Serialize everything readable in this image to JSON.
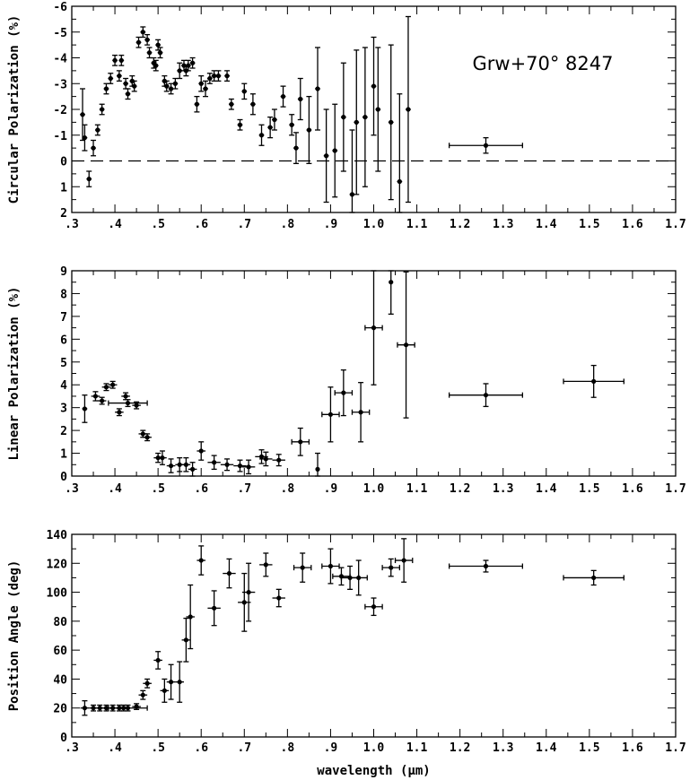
{
  "chart_data": [
    {
      "type": "scatter",
      "ylabel": "Circular Polarization (%)",
      "xlabel": "",
      "xlim": [
        0.3,
        1.7
      ],
      "ylim": [
        -6,
        2
      ],
      "y_inverted": true,
      "xticklabels": [
        ".3",
        ".4",
        ".5",
        ".6",
        ".7",
        ".8",
        ".9",
        "1.0",
        "1.1",
        "1.2",
        "1.3",
        "1.4",
        "1.5",
        "1.6",
        "1.7"
      ],
      "yticks": [
        -6,
        -5,
        -4,
        -3,
        -2,
        -1,
        0,
        1,
        2
      ],
      "yticklabels": [
        "-6",
        "-5",
        "-4",
        "-3",
        "-2",
        "-1",
        "0",
        "1",
        "2"
      ],
      "reference_line": 0,
      "annotation": "Grw+70° 8247",
      "grid": false,
      "points": [
        {
          "x": 0.325,
          "y": -1.8,
          "ye": 1.0
        },
        {
          "x": 0.33,
          "y": -0.9,
          "ye": 0.5
        },
        {
          "x": 0.34,
          "y": 0.7,
          "ye": 0.3
        },
        {
          "x": 0.35,
          "y": -0.5,
          "ye": 0.3
        },
        {
          "x": 0.36,
          "y": -1.2,
          "ye": 0.2
        },
        {
          "x": 0.37,
          "y": -2.0,
          "ye": 0.2
        },
        {
          "x": 0.38,
          "y": -2.8,
          "ye": 0.2
        },
        {
          "x": 0.39,
          "y": -3.2,
          "ye": 0.2
        },
        {
          "x": 0.4,
          "y": -3.9,
          "ye": 0.2
        },
        {
          "x": 0.41,
          "y": -3.3,
          "ye": 0.2
        },
        {
          "x": 0.415,
          "y": -3.9,
          "ye": 0.2
        },
        {
          "x": 0.425,
          "y": -3.0,
          "ye": 0.2
        },
        {
          "x": 0.43,
          "y": -2.6,
          "ye": 0.2
        },
        {
          "x": 0.44,
          "y": -3.1,
          "ye": 0.2
        },
        {
          "x": 0.445,
          "y": -2.9,
          "ye": 0.2
        },
        {
          "x": 0.455,
          "y": -4.6,
          "ye": 0.2
        },
        {
          "x": 0.465,
          "y": -5.0,
          "ye": 0.2
        },
        {
          "x": 0.475,
          "y": -4.7,
          "ye": 0.2
        },
        {
          "x": 0.48,
          "y": -4.2,
          "ye": 0.2
        },
        {
          "x": 0.49,
          "y": -3.8,
          "ye": 0.2
        },
        {
          "x": 0.495,
          "y": -3.7,
          "ye": 0.2
        },
        {
          "x": 0.5,
          "y": -4.5,
          "ye": 0.2
        },
        {
          "x": 0.505,
          "y": -4.2,
          "ye": 0.2
        },
        {
          "x": 0.515,
          "y": -3.1,
          "ye": 0.2
        },
        {
          "x": 0.52,
          "y": -2.9,
          "ye": 0.2
        },
        {
          "x": 0.53,
          "y": -2.8,
          "ye": 0.2
        },
        {
          "x": 0.54,
          "y": -3.0,
          "ye": 0.2
        },
        {
          "x": 0.55,
          "y": -3.5,
          "ye": 0.3
        },
        {
          "x": 0.56,
          "y": -3.7,
          "ye": 0.2
        },
        {
          "x": 0.565,
          "y": -3.5,
          "ye": 0.2
        },
        {
          "x": 0.57,
          "y": -3.7,
          "ye": 0.2
        },
        {
          "x": 0.58,
          "y": -3.8,
          "ye": 0.2
        },
        {
          "x": 0.59,
          "y": -2.2,
          "ye": 0.3
        },
        {
          "x": 0.6,
          "y": -3.0,
          "ye": 0.3
        },
        {
          "x": 0.61,
          "y": -2.8,
          "ye": 0.3
        },
        {
          "x": 0.62,
          "y": -3.2,
          "ye": 0.2
        },
        {
          "x": 0.63,
          "y": -3.3,
          "ye": 0.2
        },
        {
          "x": 0.64,
          "y": -3.3,
          "ye": 0.2
        },
        {
          "x": 0.66,
          "y": -3.3,
          "ye": 0.2
        },
        {
          "x": 0.67,
          "y": -2.2,
          "ye": 0.2
        },
        {
          "x": 0.69,
          "y": -1.4,
          "ye": 0.2
        },
        {
          "x": 0.7,
          "y": -2.7,
          "ye": 0.3
        },
        {
          "x": 0.72,
          "y": -2.2,
          "ye": 0.4
        },
        {
          "x": 0.74,
          "y": -1.0,
          "ye": 0.4
        },
        {
          "x": 0.76,
          "y": -1.3,
          "ye": 0.4
        },
        {
          "x": 0.77,
          "y": -1.6,
          "ye": 0.4
        },
        {
          "x": 0.79,
          "y": -2.5,
          "ye": 0.4
        },
        {
          "x": 0.81,
          "y": -1.4,
          "ye": 0.4
        },
        {
          "x": 0.82,
          "y": -0.5,
          "ye": 0.6
        },
        {
          "x": 0.83,
          "y": -2.4,
          "ye": 0.8
        },
        {
          "x": 0.85,
          "y": -1.2,
          "ye": 1.3
        },
        {
          "x": 0.87,
          "y": -2.8,
          "ye": 1.6
        },
        {
          "x": 0.89,
          "y": -0.2,
          "ye": 1.8
        },
        {
          "x": 0.91,
          "y": -0.4,
          "ye": 1.8
        },
        {
          "x": 0.93,
          "y": -1.7,
          "ye": 2.1
        },
        {
          "x": 0.95,
          "y": 1.3,
          "ye": 2.5
        },
        {
          "x": 0.96,
          "y": -1.5,
          "ye": 2.8
        },
        {
          "x": 0.98,
          "y": -1.7,
          "ye": 2.7
        },
        {
          "x": 1.0,
          "y": -2.9,
          "ye": 1.9
        },
        {
          "x": 1.01,
          "y": -2.0,
          "ye": 2.4
        },
        {
          "x": 1.04,
          "y": -1.5,
          "ye": 3.0
        },
        {
          "x": 1.06,
          "y": 0.8,
          "ye": 3.4
        },
        {
          "x": 1.08,
          "y": -2.0,
          "ye": 3.6
        },
        {
          "x": 1.26,
          "y": -0.6,
          "ye": 0.3,
          "xe": 0.085
        }
      ]
    },
    {
      "type": "scatter",
      "ylabel": "Linear Polarization (%)",
      "xlabel": "",
      "xlim": [
        0.3,
        1.7
      ],
      "ylim": [
        0,
        9
      ],
      "xticklabels": [
        ".3",
        ".4",
        ".5",
        ".6",
        ".7",
        ".8",
        ".9",
        "1.0",
        "1.1",
        "1.2",
        "1.3",
        "1.4",
        "1.5",
        "1.6",
        "1.7"
      ],
      "yticks": [
        0,
        1,
        2,
        3,
        4,
        5,
        6,
        7,
        8,
        9
      ],
      "yticklabels": [
        "0",
        "1",
        "2",
        "3",
        "4",
        "5",
        "6",
        "7",
        "8",
        "9"
      ],
      "grid": false,
      "points": [
        {
          "x": 0.33,
          "y": 2.95,
          "ye": 0.6
        },
        {
          "x": 0.355,
          "y": 3.5,
          "ye": 0.2,
          "xe": 0.01
        },
        {
          "x": 0.37,
          "y": 3.3,
          "ye": 0.15,
          "xe": 0.01
        },
        {
          "x": 0.38,
          "y": 3.9,
          "ye": 0.15,
          "xe": 0.01
        },
        {
          "x": 0.395,
          "y": 4.0,
          "ye": 0.15,
          "xe": 0.01
        },
        {
          "x": 0.41,
          "y": 2.8,
          "ye": 0.15,
          "xe": 0.01
        },
        {
          "x": 0.425,
          "y": 3.5,
          "ye": 0.15,
          "xe": 0.01
        },
        {
          "x": 0.43,
          "y": 3.2,
          "ye": 0.15,
          "xe": 0.045
        },
        {
          "x": 0.45,
          "y": 3.1,
          "ye": 0.15,
          "xe": 0.01
        },
        {
          "x": 0.465,
          "y": 1.85,
          "ye": 0.15,
          "xe": 0.01
        },
        {
          "x": 0.475,
          "y": 1.7,
          "ye": 0.15,
          "xe": 0.01
        },
        {
          "x": 0.5,
          "y": 0.8,
          "ye": 0.2,
          "xe": 0.01
        },
        {
          "x": 0.51,
          "y": 0.8,
          "ye": 0.3,
          "xe": 0.01
        },
        {
          "x": 0.53,
          "y": 0.45,
          "ye": 0.3,
          "xe": 0.01
        },
        {
          "x": 0.55,
          "y": 0.5,
          "ye": 0.3,
          "xe": 0.01
        },
        {
          "x": 0.565,
          "y": 0.5,
          "ye": 0.3,
          "xe": 0.01
        },
        {
          "x": 0.58,
          "y": 0.3,
          "ye": 0.3,
          "xe": 0.01
        },
        {
          "x": 0.6,
          "y": 1.1,
          "ye": 0.4,
          "xe": 0.01
        },
        {
          "x": 0.63,
          "y": 0.6,
          "ye": 0.3,
          "xe": 0.015
        },
        {
          "x": 0.66,
          "y": 0.5,
          "ye": 0.25,
          "xe": 0.015
        },
        {
          "x": 0.69,
          "y": 0.45,
          "ye": 0.25,
          "xe": 0.015
        },
        {
          "x": 0.71,
          "y": 0.4,
          "ye": 0.3,
          "xe": 0.015
        },
        {
          "x": 0.74,
          "y": 0.85,
          "ye": 0.3,
          "xe": 0.015
        },
        {
          "x": 0.75,
          "y": 0.75,
          "ye": 0.3,
          "xe": 0.015
        },
        {
          "x": 0.78,
          "y": 0.7,
          "ye": 0.25,
          "xe": 0.015
        },
        {
          "x": 0.83,
          "y": 1.5,
          "ye": 0.6,
          "xe": 0.02
        },
        {
          "x": 0.87,
          "y": 0.3,
          "ye": 0.7,
          "xe": 0.0
        },
        {
          "x": 0.9,
          "y": 2.7,
          "ye": 1.2,
          "xe": 0.02
        },
        {
          "x": 0.93,
          "y": 3.65,
          "ye": 1.0,
          "xe": 0.02
        },
        {
          "x": 0.97,
          "y": 2.8,
          "ye": 1.3,
          "xe": 0.02
        },
        {
          "x": 1.0,
          "y": 6.5,
          "ye": 2.5,
          "xe": 0.02
        },
        {
          "x": 1.04,
          "y": 8.5,
          "ye": 1.4,
          "xe": 0.0
        },
        {
          "x": 1.075,
          "y": 5.75,
          "ye": 3.2,
          "xe": 0.02
        },
        {
          "x": 1.26,
          "y": 3.55,
          "ye": 0.5,
          "xe": 0.085
        },
        {
          "x": 1.51,
          "y": 4.15,
          "ye": 0.7,
          "xe": 0.07
        }
      ]
    },
    {
      "type": "scatter",
      "ylabel": "Position Angle (deg)",
      "xlabel": "wavelength (μm)",
      "xlim": [
        0.3,
        1.7
      ],
      "ylim": [
        0,
        140
      ],
      "xticklabels": [
        ".3",
        ".4",
        ".5",
        ".6",
        ".7",
        ".8",
        ".9",
        "1.0",
        "1.1",
        "1.2",
        "1.3",
        "1.4",
        "1.5",
        "1.6",
        "1.7"
      ],
      "yticks": [
        0,
        20,
        40,
        60,
        80,
        100,
        120,
        140
      ],
      "yticklabels": [
        "0",
        "20",
        "40",
        "60",
        "80",
        "100",
        "120",
        "140"
      ],
      "grid": false,
      "points": [
        {
          "x": 0.33,
          "y": 20,
          "ye": 5,
          "xe": 0.01
        },
        {
          "x": 0.35,
          "y": 20,
          "ye": 2,
          "xe": 0.01
        },
        {
          "x": 0.365,
          "y": 20,
          "ye": 2,
          "xe": 0.01
        },
        {
          "x": 0.38,
          "y": 20,
          "ye": 2,
          "xe": 0.01
        },
        {
          "x": 0.395,
          "y": 20,
          "ye": 2,
          "xe": 0.01
        },
        {
          "x": 0.41,
          "y": 20,
          "ye": 2,
          "xe": 0.01
        },
        {
          "x": 0.42,
          "y": 20,
          "ye": 2,
          "xe": 0.01
        },
        {
          "x": 0.43,
          "y": 20,
          "ye": 2,
          "xe": 0.045
        },
        {
          "x": 0.45,
          "y": 21,
          "ye": 2,
          "xe": 0.01
        },
        {
          "x": 0.465,
          "y": 29,
          "ye": 3,
          "xe": 0.01
        },
        {
          "x": 0.475,
          "y": 37,
          "ye": 3,
          "xe": 0.01
        },
        {
          "x": 0.5,
          "y": 53,
          "ye": 6,
          "xe": 0.01
        },
        {
          "x": 0.515,
          "y": 32,
          "ye": 8,
          "xe": 0.01
        },
        {
          "x": 0.53,
          "y": 38,
          "ye": 12,
          "xe": 0.01
        },
        {
          "x": 0.55,
          "y": 38,
          "ye": 14,
          "xe": 0.01
        },
        {
          "x": 0.565,
          "y": 67,
          "ye": 15,
          "xe": 0.01
        },
        {
          "x": 0.575,
          "y": 83,
          "ye": 22,
          "xe": 0.01
        },
        {
          "x": 0.6,
          "y": 122,
          "ye": 10,
          "xe": 0.01
        },
        {
          "x": 0.63,
          "y": 89,
          "ye": 12,
          "xe": 0.015
        },
        {
          "x": 0.665,
          "y": 113,
          "ye": 10,
          "xe": 0.015
        },
        {
          "x": 0.7,
          "y": 93,
          "ye": 20,
          "xe": 0.015
        },
        {
          "x": 0.71,
          "y": 100,
          "ye": 20,
          "xe": 0.015
        },
        {
          "x": 0.75,
          "y": 119,
          "ye": 8,
          "xe": 0.015
        },
        {
          "x": 0.78,
          "y": 96,
          "ye": 6,
          "xe": 0.015
        },
        {
          "x": 0.835,
          "y": 117,
          "ye": 10,
          "xe": 0.02
        },
        {
          "x": 0.9,
          "y": 118,
          "ye": 12,
          "xe": 0.02
        },
        {
          "x": 0.925,
          "y": 111,
          "ye": 6,
          "xe": 0.02
        },
        {
          "x": 0.945,
          "y": 110,
          "ye": 8,
          "xe": 0.02
        },
        {
          "x": 0.965,
          "y": 110,
          "ye": 12,
          "xe": 0.02
        },
        {
          "x": 1.0,
          "y": 90,
          "ye": 6,
          "xe": 0.02
        },
        {
          "x": 1.04,
          "y": 117,
          "ye": 6,
          "xe": 0.02
        },
        {
          "x": 1.07,
          "y": 122,
          "ye": 15,
          "xe": 0.02
        },
        {
          "x": 1.26,
          "y": 118,
          "ye": 4,
          "xe": 0.085
        },
        {
          "x": 1.51,
          "y": 110,
          "ye": 5,
          "xe": 0.07
        }
      ]
    }
  ]
}
